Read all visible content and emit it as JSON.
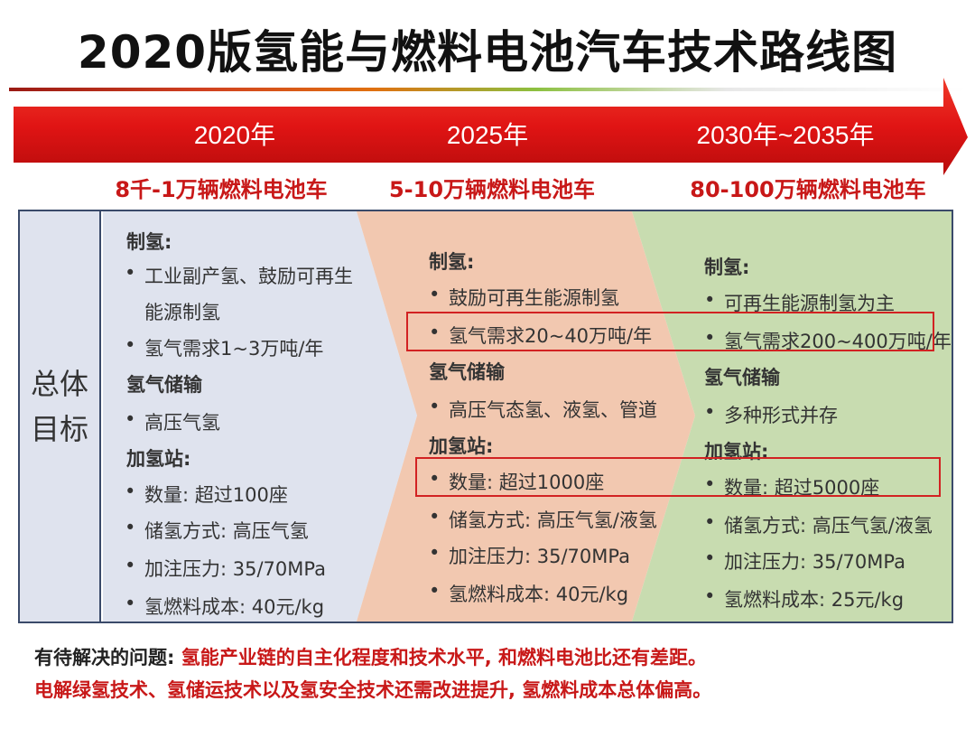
{
  "title": "2020版氢能与燃料电池汽车技术路线图",
  "timeline": {
    "years": [
      "2020年",
      "2025年",
      "2030年~2035年"
    ],
    "vehicles": [
      "8千-1万辆燃料电池车",
      "5-10万辆燃料电池车",
      "80-100万辆燃料电池车"
    ]
  },
  "side_label_line1": "总体",
  "side_label_line2": "目标",
  "columns": [
    {
      "h_production": "制氢:",
      "p1a": "工业副产氢、鼓励可再生",
      "p1b": "能源制氢",
      "p2": "氢气需求1~3万吨/年",
      "h_storage": "氢气储输",
      "s1": "高压气氢",
      "h_station": "加氢站:",
      "st1": "数量: 超过100座",
      "st2": "储氢方式: 高压气氢",
      "st3": "加注压力: 35/70MPa",
      "st4": "氢燃料成本: 40元/kg"
    },
    {
      "h_production": "制氢:",
      "p1": "鼓励可再生能源制氢",
      "p2": "氢气需求20~40万吨/年",
      "h_storage": "氢气储输",
      "s1": "高压气态氢、液氢、管道",
      "h_station": "加氢站:",
      "st1": "数量: 超过1000座",
      "st2": "储氢方式: 高压气氢/液氢",
      "st3": "加注压力: 35/70MPa",
      "st4": "氢燃料成本: 40元/kg"
    },
    {
      "h_production": "制氢:",
      "p1": "可再生能源制氢为主",
      "p2": "氢气需求200~400万吨/年",
      "h_storage": "氢气储输",
      "s1": "多种形式并存",
      "h_station": "加氢站:",
      "st1": "数量: 超过5000座",
      "st2": "储氢方式: 高压气氢/液氢",
      "st3": "加注压力: 35/70MPa",
      "st4": "氢燃料成本: 25元/kg"
    }
  ],
  "problems": {
    "lead": "有待解决的问题: ",
    "line1": "氢能产业链的自主化程度和技术水平, 和燃料电池比还有差距。",
    "line2": "电解绿氢技术、氢储运技术以及氢安全技术还需改进提升, 氢燃料成本总体偏高。"
  },
  "colors": {
    "arrow_red": "#e01414",
    "col1_bg": "#dfe3ee",
    "col2_bg": "#f2c8b0",
    "col3_bg": "#c8dcb0",
    "highlight": "#d22222",
    "problem_red": "#c81818"
  }
}
